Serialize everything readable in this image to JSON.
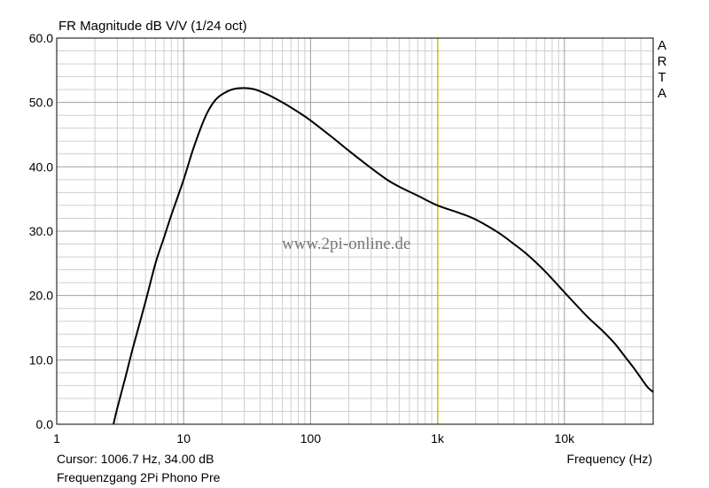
{
  "chart_data": {
    "type": "line",
    "title": "FR Magnitude dB V/V (1/24 oct)",
    "xlabel": "Frequency (Hz)",
    "ylabel": "",
    "x_scale": "log",
    "xlim": [
      1,
      50000
    ],
    "ylim": [
      0,
      60
    ],
    "x_ticks": [
      {
        "value": 1,
        "label": "1"
      },
      {
        "value": 10,
        "label": "10"
      },
      {
        "value": 100,
        "label": "100"
      },
      {
        "value": 1000,
        "label": "1k"
      },
      {
        "value": 10000,
        "label": "10k"
      }
    ],
    "y_ticks": [
      {
        "value": 0,
        "label": "0.0"
      },
      {
        "value": 10,
        "label": "10.0"
      },
      {
        "value": 20,
        "label": "20.0"
      },
      {
        "value": 30,
        "label": "30.0"
      },
      {
        "value": 40,
        "label": "40.0"
      },
      {
        "value": 50,
        "label": "50.0"
      },
      {
        "value": 60,
        "label": "60.0"
      }
    ],
    "grid": true,
    "cursor": {
      "x": 1006.7,
      "y": 34.0
    },
    "series": [
      {
        "color": "#000000",
        "points": [
          [
            2.8,
            0.0
          ],
          [
            3.0,
            2.5
          ],
          [
            3.5,
            7.5
          ],
          [
            4.0,
            12.0
          ],
          [
            5.0,
            19.0
          ],
          [
            6.0,
            25.0
          ],
          [
            7.0,
            29.0
          ],
          [
            8.0,
            32.5
          ],
          [
            10.0,
            38.0
          ],
          [
            12.0,
            43.0
          ],
          [
            15.0,
            48.0
          ],
          [
            18.0,
            50.5
          ],
          [
            22.0,
            51.7
          ],
          [
            27.0,
            52.2
          ],
          [
            35.0,
            52.1
          ],
          [
            45.0,
            51.3
          ],
          [
            60.0,
            50.0
          ],
          [
            80.0,
            48.5
          ],
          [
            100.0,
            47.2
          ],
          [
            150.0,
            44.5
          ],
          [
            200.0,
            42.5
          ],
          [
            300.0,
            39.8
          ],
          [
            400.0,
            38.0
          ],
          [
            500.0,
            36.9
          ],
          [
            700.0,
            35.5
          ],
          [
            1000.0,
            34.0
          ],
          [
            1500.0,
            32.8
          ],
          [
            2000.0,
            31.8
          ],
          [
            3000.0,
            29.8
          ],
          [
            4000.0,
            28.0
          ],
          [
            5000.0,
            26.5
          ],
          [
            7000.0,
            23.8
          ],
          [
            10000.0,
            20.5
          ],
          [
            15000.0,
            16.8
          ],
          [
            20000.0,
            14.5
          ],
          [
            25000.0,
            12.5
          ],
          [
            30000.0,
            10.5
          ],
          [
            35000.0,
            8.8
          ],
          [
            40000.0,
            7.2
          ],
          [
            45000.0,
            5.8
          ],
          [
            50000.0,
            5.0
          ]
        ]
      }
    ]
  },
  "cursor_text": "Cursor: 1006.7 Hz, 34.00 dB",
  "caption": "Frequenzgang 2Pi Phono Pre",
  "brand_letters": [
    "A",
    "R",
    "T",
    "A"
  ],
  "watermark": "www.2pi-online.de",
  "colors": {
    "background": "#ffffff",
    "grid_major": "#a0a0a0",
    "grid_minor": "#cfcfcf",
    "curve": "#000000",
    "cursor_line": "#d4c000",
    "watermark": "#777777"
  }
}
